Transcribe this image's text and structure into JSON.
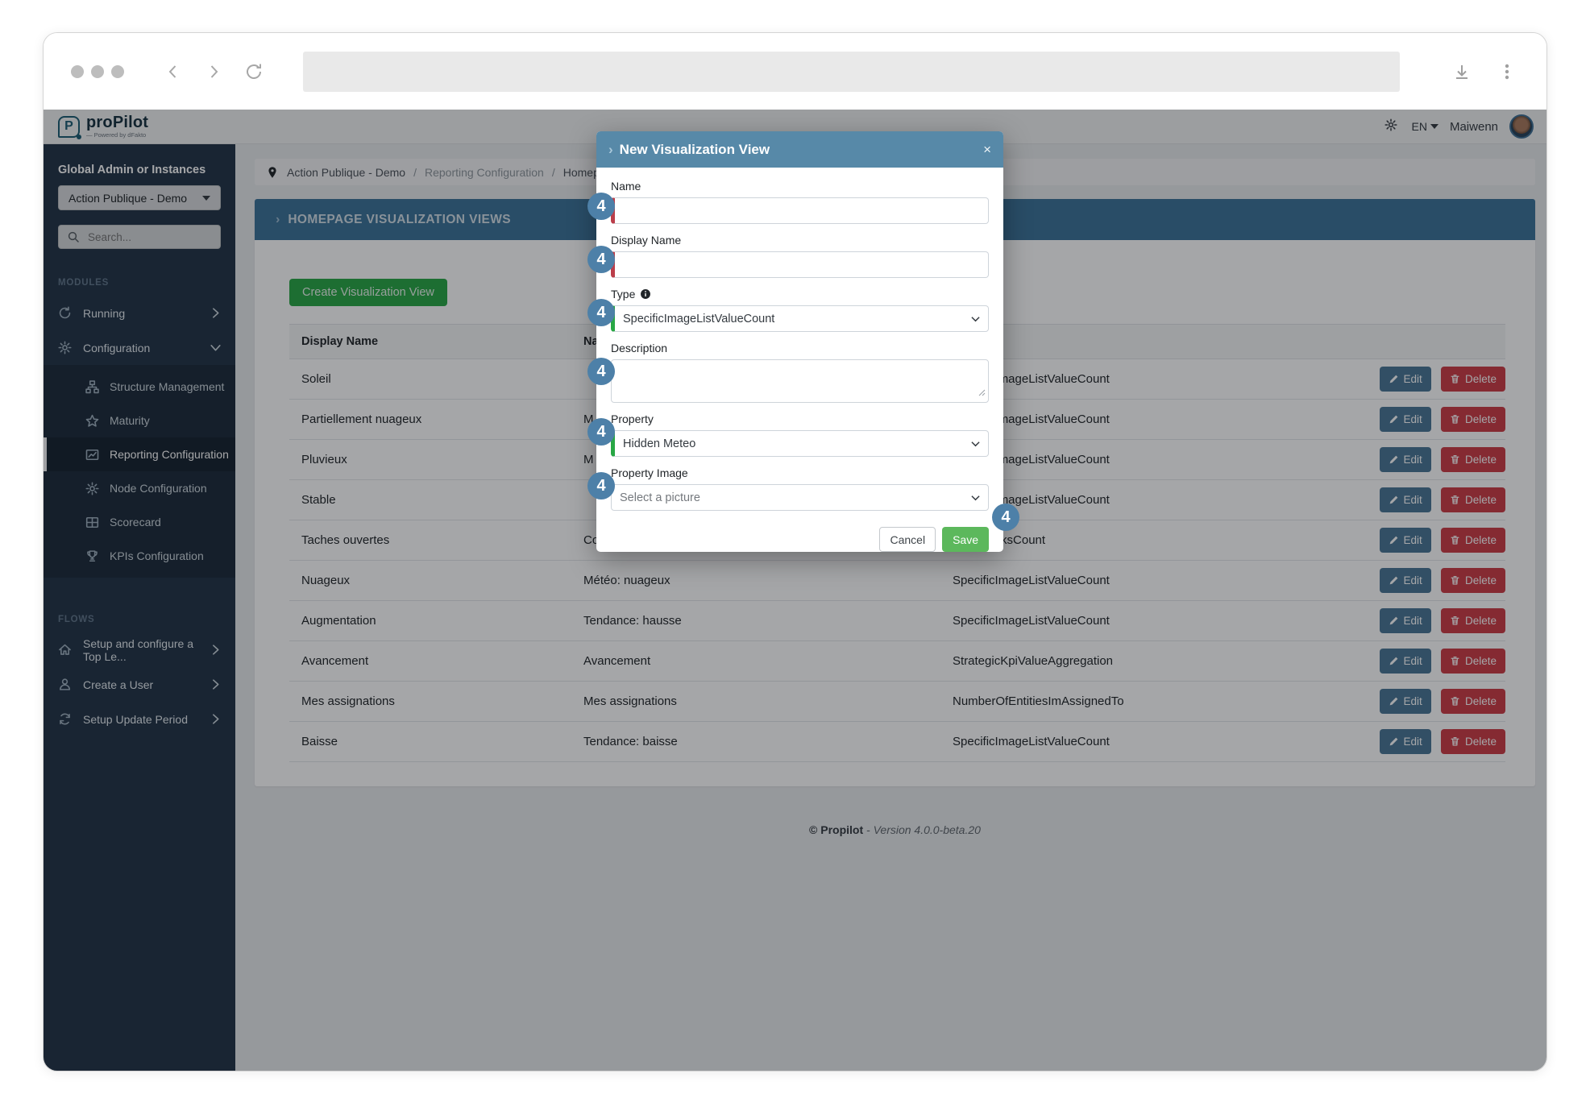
{
  "header": {
    "logo_text": "proPilot",
    "logo_tagline": "— Powered by dFakto",
    "language": "EN",
    "username": "Maiwenn"
  },
  "sidebar": {
    "instances_title": "Global Admin or Instances",
    "instance_selected": "Action Publique - Demo",
    "search_placeholder": "Search...",
    "modules_label": "MODULES",
    "modules": [
      {
        "label": "Running",
        "icon": "running-icon",
        "chevron": "right",
        "expanded": false
      },
      {
        "label": "Configuration",
        "icon": "gear-icon",
        "chevron": "down",
        "expanded": true
      }
    ],
    "config_children": [
      {
        "label": "Structure Management",
        "icon": "sitemap-icon",
        "active": false
      },
      {
        "label": "Maturity",
        "icon": "star-icon",
        "active": false
      },
      {
        "label": "Reporting Configuration",
        "icon": "chart-line-icon",
        "active": true
      },
      {
        "label": "Node Configuration",
        "icon": "gear-icon",
        "active": false
      },
      {
        "label": "Scorecard",
        "icon": "table-icon",
        "active": false
      },
      {
        "label": "KPIs Configuration",
        "icon": "trophy-icon",
        "active": false
      }
    ],
    "flows_label": "FLOWS",
    "flows": [
      {
        "label": "Setup and configure a Top Le...",
        "icon": "home-icon"
      },
      {
        "label": "Create a User",
        "icon": "user-icon"
      },
      {
        "label": "Setup Update Period",
        "icon": "sync-icon"
      }
    ]
  },
  "breadcrumb": {
    "items": [
      "Action Publique - Demo",
      "Reporting Configuration",
      "Homepage Visualization Views"
    ]
  },
  "panel": {
    "title": "HOMEPAGE VISUALIZATION VIEWS",
    "create_button": "Create Visualization View"
  },
  "table": {
    "columns": [
      "Display Name",
      "Name",
      "Type",
      ""
    ],
    "edit_label": "Edit",
    "delete_label": "Delete",
    "rows": [
      {
        "display_name": "Soleil",
        "name": "",
        "type": "SpecificImageListValueCount"
      },
      {
        "display_name": "Partiellement nuageux",
        "name": "M",
        "type": "SpecificImageListValueCount"
      },
      {
        "display_name": "Pluvieux",
        "name": "M",
        "type": "SpecificImageListValueCount"
      },
      {
        "display_name": "Stable",
        "name": "",
        "type": "SpecificImageListValueCount"
      },
      {
        "display_name": "Taches ouvertes",
        "name": "Co",
        "type": "OpenTasksCount"
      },
      {
        "display_name": "Nuageux",
        "name": "Météo: nuageux",
        "type": "SpecificImageListValueCount"
      },
      {
        "display_name": "Augmentation",
        "name": "Tendance: hausse",
        "type": "SpecificImageListValueCount"
      },
      {
        "display_name": "Avancement",
        "name": "Avancement",
        "type": "StrategicKpiValueAggregation"
      },
      {
        "display_name": "Mes assignations",
        "name": "Mes assignations",
        "type": "NumberOfEntitiesImAssignedTo"
      },
      {
        "display_name": "Baisse",
        "name": "Tendance: baisse",
        "type": "SpecificImageListValueCount"
      }
    ]
  },
  "modal": {
    "title": "New Visualization View",
    "close_label": "×",
    "fields": [
      {
        "label": "Name",
        "value": "",
        "accent": "red"
      },
      {
        "label": "Display Name",
        "value": "",
        "accent": "red"
      },
      {
        "label": "Type",
        "value": "SpecificImageListValueCount",
        "accent": "green",
        "info": true
      },
      {
        "label": "Description",
        "value": ""
      },
      {
        "label": "Property",
        "value": "Hidden Meteo",
        "accent": "green"
      },
      {
        "label": "Property Image",
        "value": "Select a picture",
        "is_placeholder": true
      }
    ],
    "cancel_label": "Cancel",
    "save_label": "Save"
  },
  "annotations": {
    "step_label": "4",
    "count": 7
  },
  "footer": {
    "copyright": "© Propilot",
    "version": "- Version 4.0.0-beta.20"
  },
  "colors": {
    "sidebar": "#223447",
    "main_bg": "#e8eaec",
    "panel_header": "#3c7298",
    "modal_header": "#5789a8",
    "create": "#28a745",
    "save": "#5cb85c",
    "edit": "#4a7696",
    "delete": "#cc3b45",
    "required_accent": "#bb3e4a",
    "valid_accent": "#28a745",
    "badge": "#4d80a8"
  }
}
